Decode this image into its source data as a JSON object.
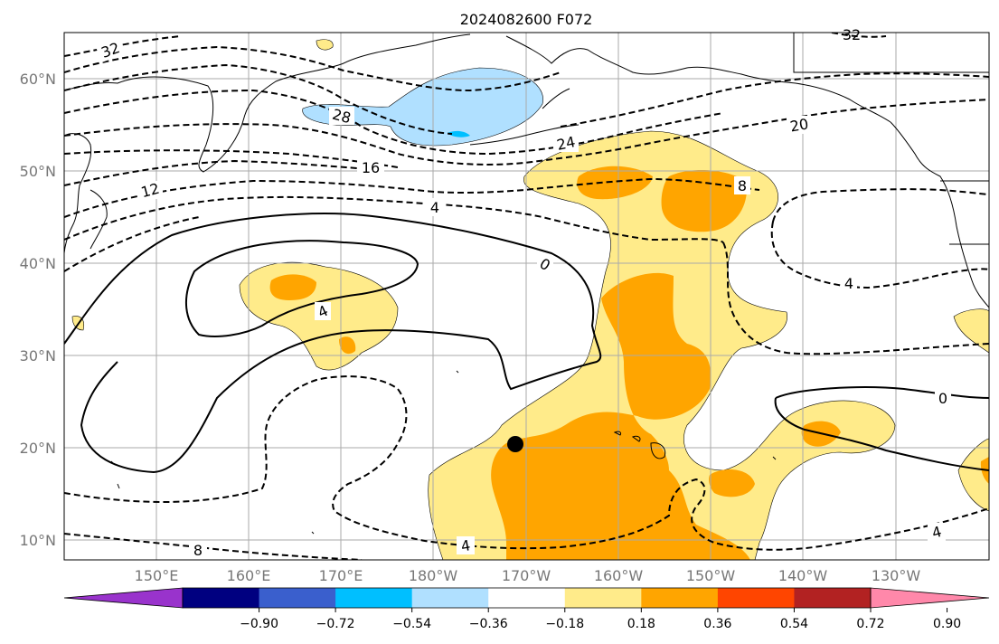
{
  "title": "2024082600 F072",
  "lat_labels": [
    "60°N",
    "50°N",
    "40°N",
    "30°N",
    "20°N",
    "10°N"
  ],
  "lon_labels": [
    "150°E",
    "160°E",
    "170°E",
    "180°W",
    "170°W",
    "160°W",
    "150°W",
    "140°W",
    "130°W"
  ],
  "colorbar": {
    "colors": [
      "#9933cc",
      "#000080",
      "#3a5fcd",
      "#00bfff",
      "#b0e0ff",
      "#ffffff",
      "#ffeb8a",
      "#ffa500",
      "#ff4500",
      "#b22222",
      "#ff88aa"
    ],
    "tick_labels": [
      "−0.90",
      "−0.72",
      "−0.54",
      "−0.36",
      "−0.18",
      "0.18",
      "0.36",
      "0.54",
      "0.72",
      "0.90"
    ]
  },
  "contour_labels": [
    "32",
    "28",
    "24",
    "20",
    "16",
    "12",
    "8",
    "4",
    "0",
    "4",
    "0",
    "4",
    "8",
    "4",
    "4",
    "32"
  ],
  "marker": {
    "lat": 20.5,
    "lon": -171.5
  },
  "colors": {
    "land": "#000000",
    "grid": "#aaaaaa",
    "positive_low": "#ffeb8a",
    "positive_mid": "#ffa500",
    "negative_low": "#b0e0ff",
    "negative_mid": "#00bfff"
  }
}
